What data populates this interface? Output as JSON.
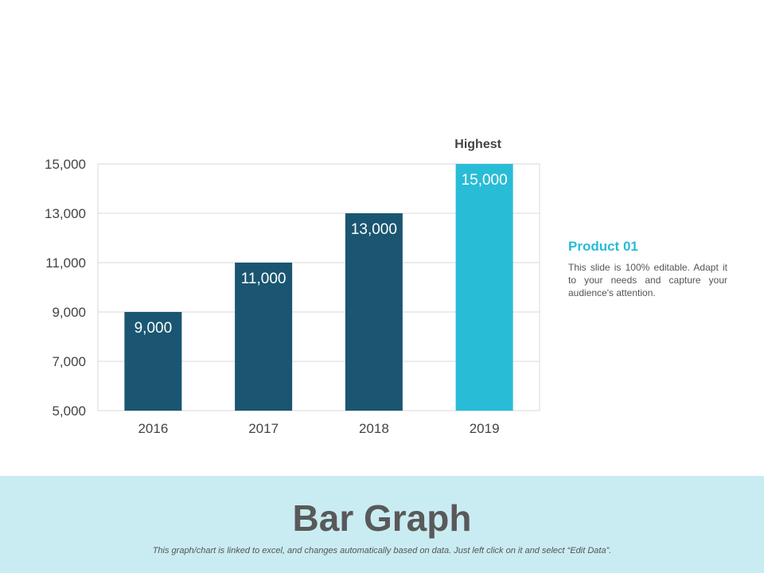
{
  "chart_data": {
    "type": "bar",
    "categories": [
      "2016",
      "2017",
      "2018",
      "2019"
    ],
    "values": [
      9000,
      11000,
      13000,
      15000
    ],
    "value_labels": [
      "9,000",
      "11,000",
      "13,000",
      "15,000"
    ],
    "ylim": [
      5000,
      15000
    ],
    "yticks": [
      5000,
      7000,
      9000,
      11000,
      13000,
      15000
    ],
    "ytick_labels": [
      "5,000",
      "7,000",
      "9,000",
      "11,000",
      "13,000",
      "15,000"
    ],
    "grid": true,
    "highlight_index": 3,
    "annotation": "Highest",
    "colors": {
      "bar": "#1a5672",
      "highlight": "#29bcd6",
      "grid": "#d9d9d9"
    },
    "title": "",
    "xlabel": "",
    "ylabel": ""
  },
  "side_panel": {
    "title": "Product 01",
    "text": "This slide is 100% editable. Adapt it to your needs and capture your audience's attention."
  },
  "footer": {
    "title": "Bar Graph",
    "note": "This graph/chart is linked to excel, and changes automatically based on data. Just left click on it and select “Edit Data”.",
    "background": "#c9ecf2"
  }
}
